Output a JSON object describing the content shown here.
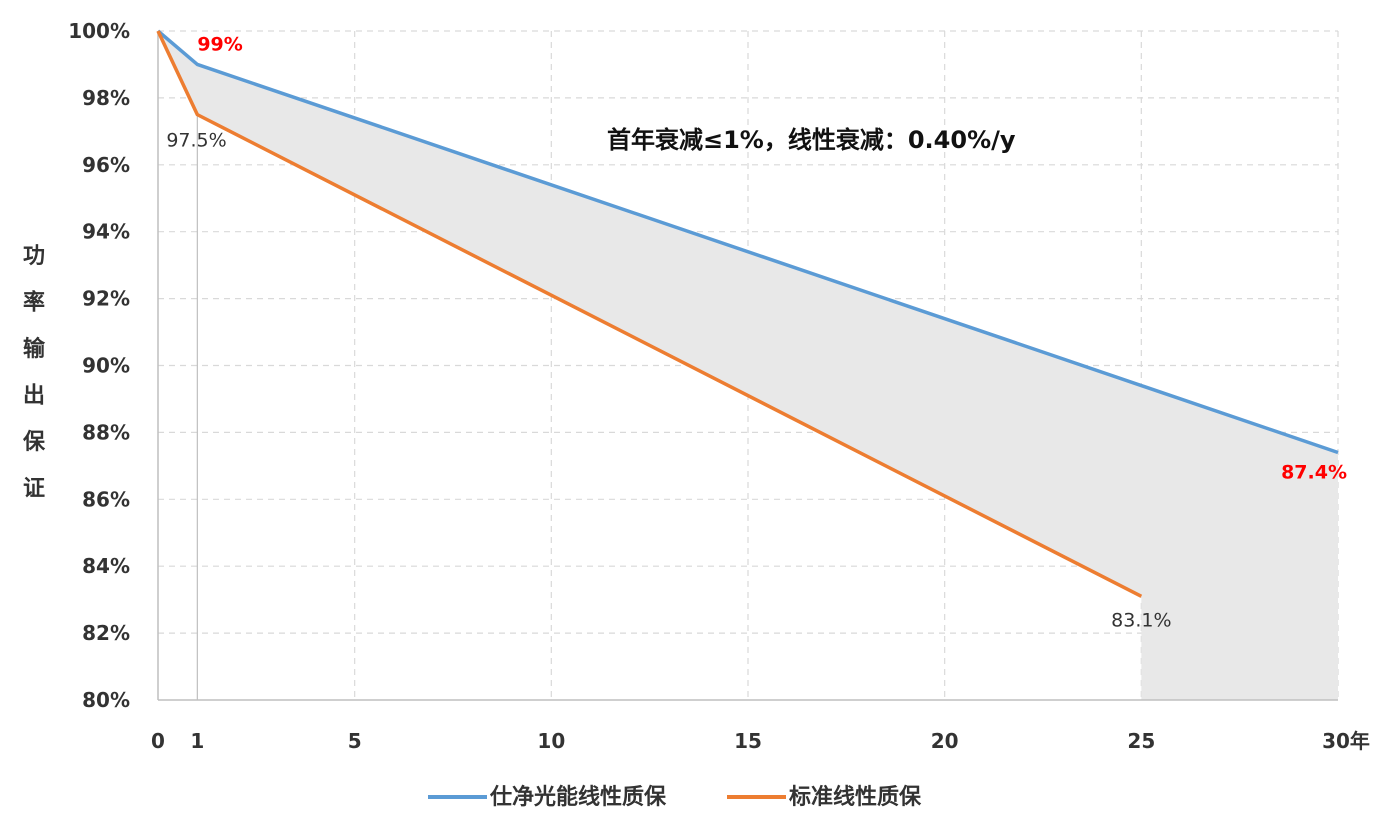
{
  "chart_data": {
    "type": "area",
    "title": "",
    "xlabel": "",
    "ylabel": "功率输出保证",
    "x_unit_label": "30年",
    "xlim": [
      0,
      30
    ],
    "ylim": [
      80,
      100
    ],
    "x_ticks": [
      0,
      1,
      5,
      10,
      15,
      20,
      25,
      30
    ],
    "x_tick_labels": [
      "0",
      "1",
      "5",
      "10",
      "15",
      "20",
      "25",
      "30年"
    ],
    "y_ticks": [
      80,
      82,
      84,
      86,
      88,
      90,
      92,
      94,
      96,
      98,
      100
    ],
    "y_tick_labels": [
      "80%",
      "82%",
      "84%",
      "86%",
      "88%",
      "90%",
      "92%",
      "94%",
      "96%",
      "98%",
      "100%"
    ],
    "grid": true,
    "legend_position": "bottom",
    "annotation": "首年衰减≤1%，线性衰减：0.40%/y",
    "shaded_region": {
      "between": "gap between series",
      "color": "#e8e8e8"
    },
    "series": [
      {
        "name": "仕净光能线性质保",
        "color": "#5b9bd5",
        "points": [
          {
            "x": 0,
            "y": 100
          },
          {
            "x": 1,
            "y": 99
          },
          {
            "x": 30,
            "y": 87.4
          }
        ]
      },
      {
        "name": "标准线性质保",
        "color": "#ed7d31",
        "points": [
          {
            "x": 0,
            "y": 100
          },
          {
            "x": 1,
            "y": 97.5
          },
          {
            "x": 25,
            "y": 83.1
          }
        ]
      }
    ],
    "point_labels": [
      {
        "text": "99%",
        "x": 1,
        "y": 99,
        "color": "#ff0000",
        "style": "red"
      },
      {
        "text": "97.5%",
        "x": 1,
        "y": 97.5,
        "color": "#333333",
        "style": "gray"
      },
      {
        "text": "83.1%",
        "x": 25,
        "y": 83.1,
        "color": "#333333",
        "style": "gray"
      },
      {
        "text": "87.4%",
        "x": 30,
        "y": 87.4,
        "color": "#ff0000",
        "style": "red"
      }
    ]
  }
}
